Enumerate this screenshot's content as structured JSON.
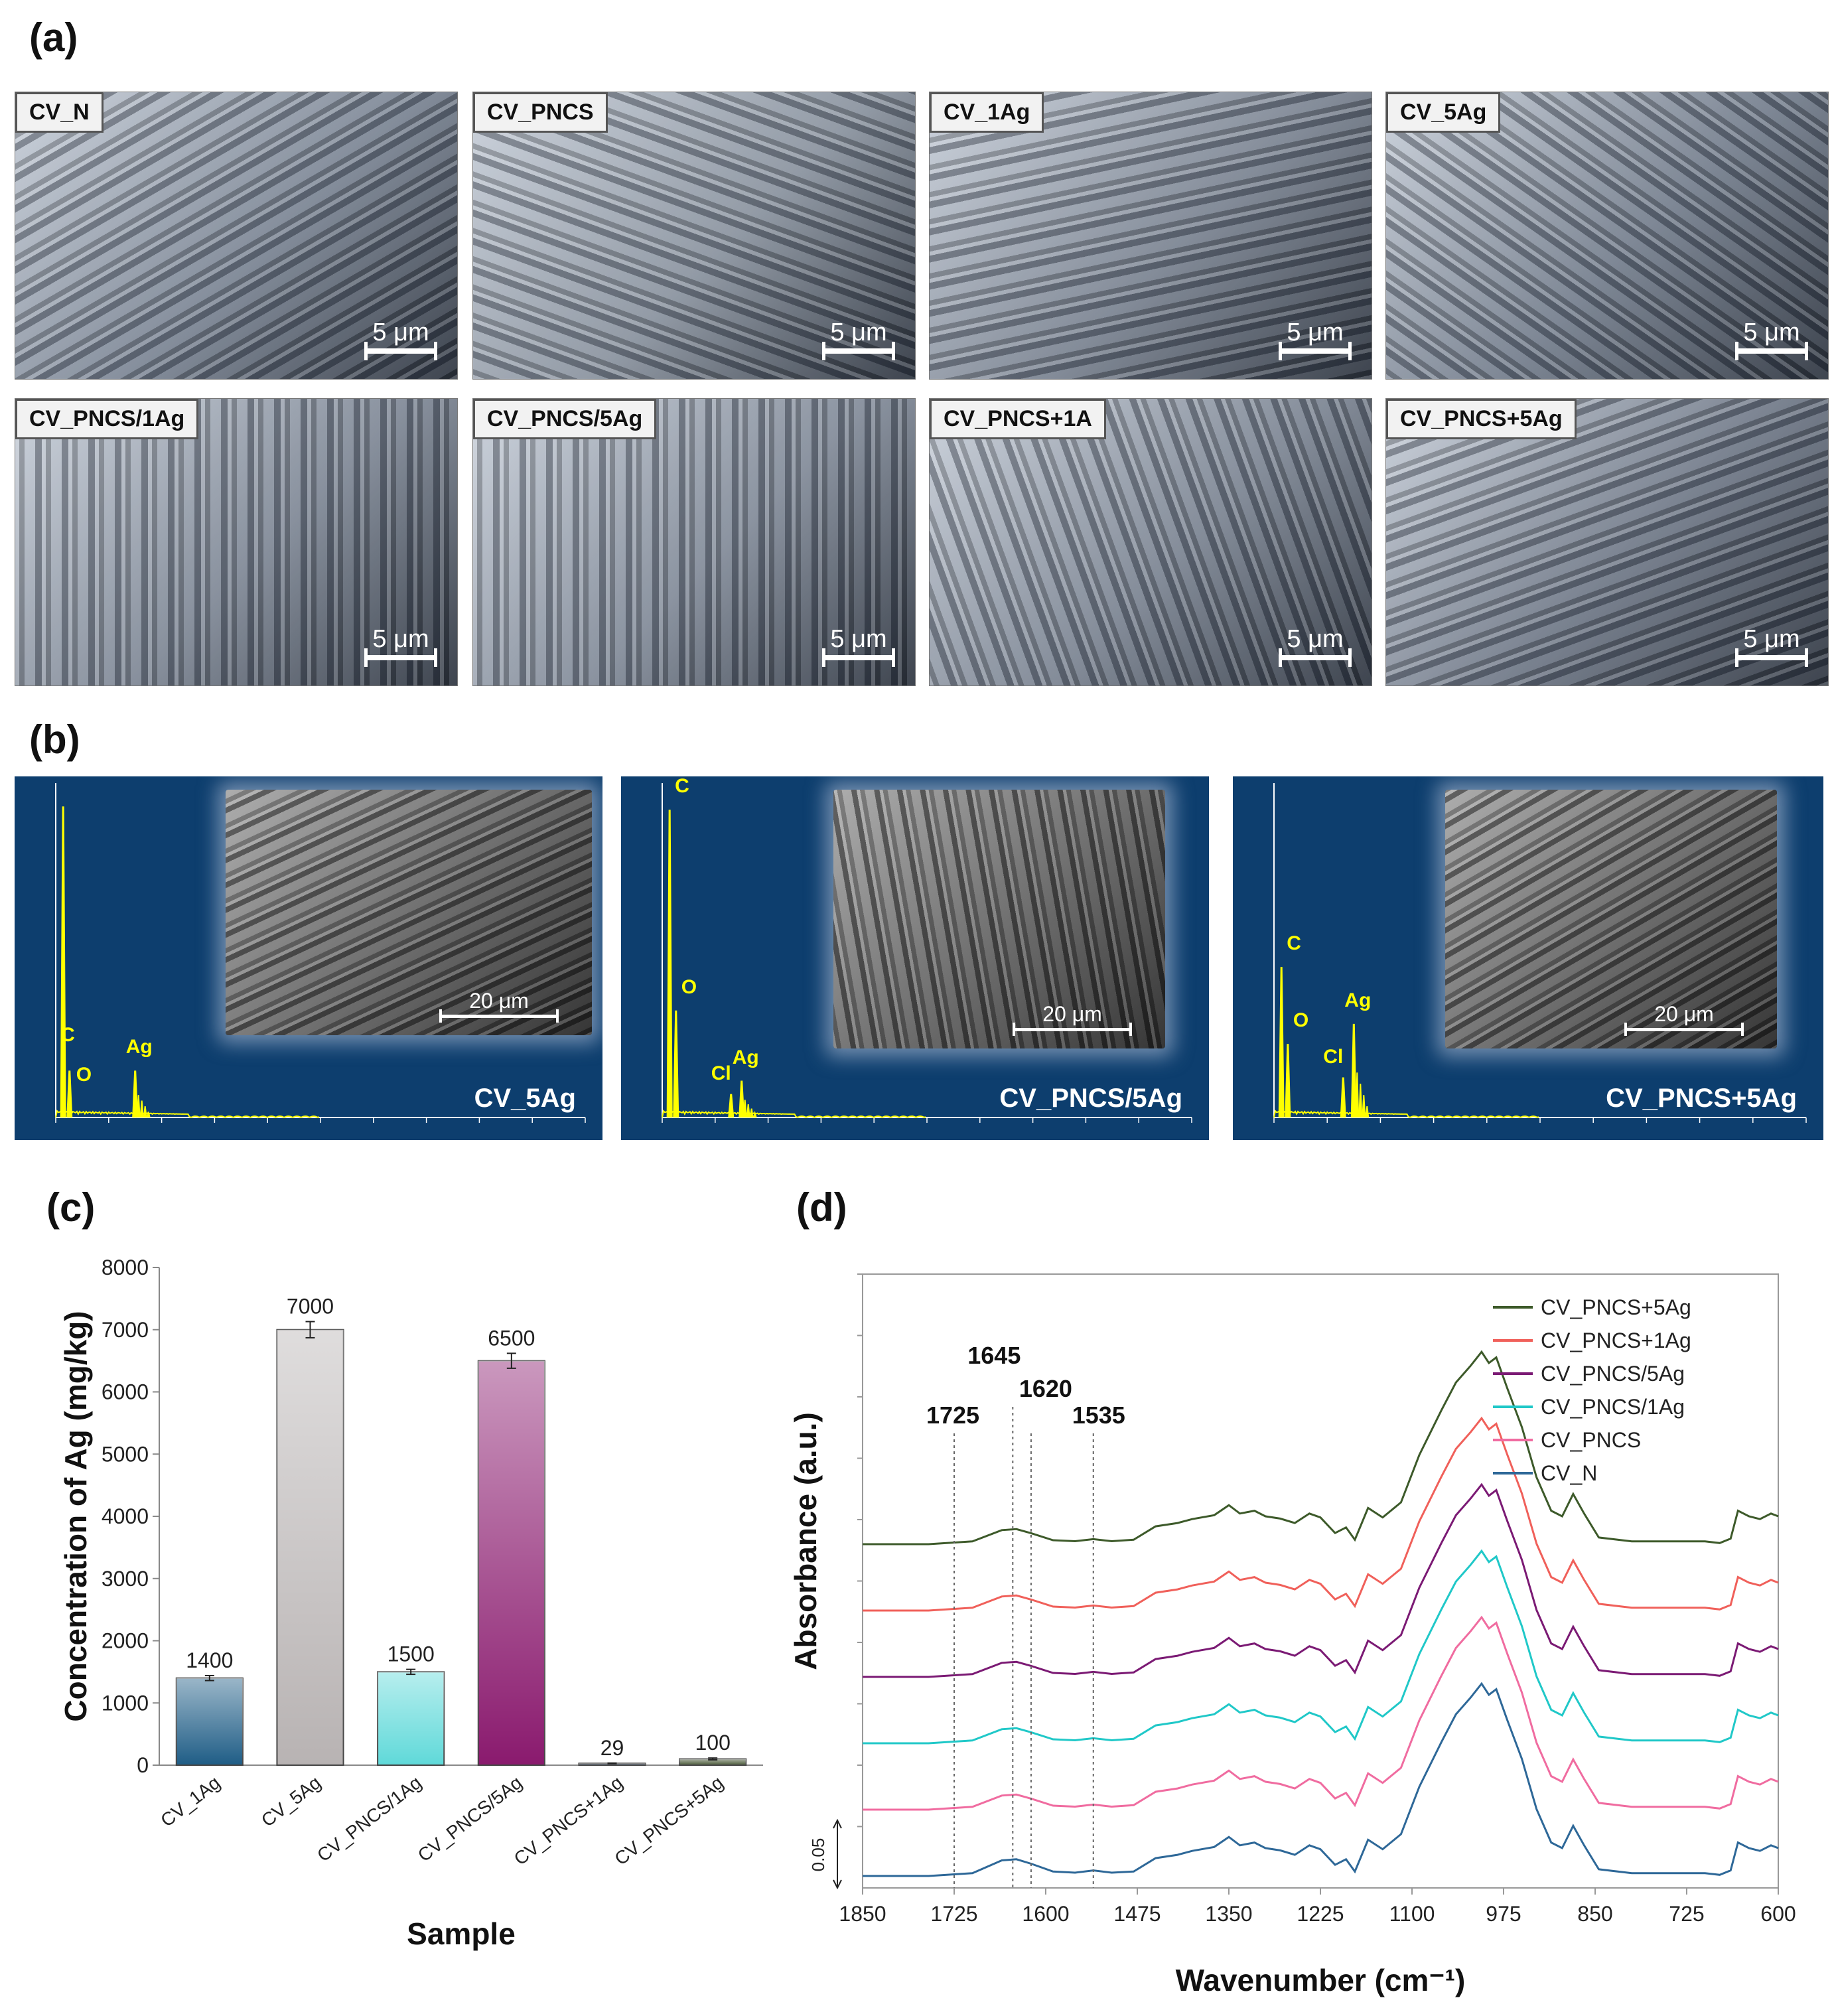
{
  "panel_a": {
    "label": "(a)",
    "images": [
      {
        "name": "CV_N",
        "scale": "5 μm",
        "tone": "#7b8594"
      },
      {
        "name": "CV_PNCS",
        "scale": "5 μm",
        "tone": "#8a939f"
      },
      {
        "name": "CV_1Ag",
        "scale": "5 μm",
        "tone": "#7a8391"
      },
      {
        "name": "CV_5Ag",
        "scale": "5 μm",
        "tone": "#737d8c"
      },
      {
        "name": "CV_PNCS/1Ag",
        "scale": "5 μm",
        "tone": "#7e8795"
      },
      {
        "name": "CV_PNCS/5Ag",
        "scale": "5 μm",
        "tone": "#818a98"
      },
      {
        "name": "CV_PNCS+1A",
        "scale": "5 μm",
        "tone": "#7b8492"
      },
      {
        "name": "CV_PNCS+5Ag",
        "scale": "5 μm",
        "tone": "#6f7887"
      }
    ]
  },
  "panel_b": {
    "label": "(b)",
    "spectra": [
      {
        "name": "CV_5Ag",
        "scale": "20 μm",
        "peaks": [
          "C",
          "O",
          "Ag"
        ]
      },
      {
        "name": "CV_PNCS/5Ag",
        "scale": "20 μm",
        "peaks": [
          "C",
          "O",
          "Cl",
          "Ag"
        ]
      },
      {
        "name": "CV_PNCS+5Ag",
        "scale": "20 μm",
        "peaks": [
          "C",
          "O",
          "Cl",
          "Ag"
        ]
      }
    ],
    "spectrum_color": "#ffff00",
    "background_color": "#0d3e6e"
  },
  "panel_c": {
    "label": "(c)"
  },
  "panel_d": {
    "label": "(d)"
  },
  "chart_data": [
    {
      "type": "bar",
      "title": "",
      "xlabel": "Sample",
      "ylabel": "Concentration of Ag (mg/kg)",
      "categories": [
        "CV_1Ag",
        "CV_5Ag",
        "CV_PNCS/1Ag",
        "CV_PNCS/5Ag",
        "CV_PNCS+1Ag",
        "CV_PNCS+5Ag"
      ],
      "values": [
        1400,
        7000,
        1500,
        6500,
        29,
        100
      ],
      "data_labels": [
        "1400",
        "7000",
        "1500",
        "6500",
        "29",
        "100"
      ],
      "errors": [
        40,
        130,
        40,
        120,
        5,
        15
      ],
      "colors": [
        "#1f5d86",
        "#b8b3b3",
        "#5fd9d9",
        "#8a1a6e",
        "#1f3556",
        "#4a5a38"
      ],
      "ylim": [
        0,
        8000
      ],
      "yticks": [
        0,
        1000,
        2000,
        3000,
        4000,
        5000,
        6000,
        7000,
        8000
      ]
    },
    {
      "type": "line",
      "title": "",
      "xlabel": "Wavenumber (cm⁻¹)",
      "ylabel": "Absorbance (a.u.)",
      "xlim": [
        1850,
        600
      ],
      "xticks": [
        1850,
        1725,
        1600,
        1475,
        1350,
        1225,
        1100,
        975,
        850,
        725,
        600
      ],
      "scale_bar": "0.05",
      "annotations": [
        {
          "label": "1725",
          "x": 1725
        },
        {
          "label": "1645",
          "x": 1645
        },
        {
          "label": "1620",
          "x": 1620
        },
        {
          "label": "1535",
          "x": 1535
        }
      ],
      "legend_position": "top-right",
      "series": [
        {
          "name": "CV_PNCS+5Ag",
          "color": "#3d5a2a",
          "offset": 5,
          "amp": 1.0
        },
        {
          "name": "CV_PNCS+1Ag",
          "color": "#f0605a",
          "offset": 4,
          "amp": 1.0
        },
        {
          "name": "CV_PNCS/5Ag",
          "color": "#7b1a74",
          "offset": 3,
          "amp": 1.0
        },
        {
          "name": "CV_PNCS/1Ag",
          "color": "#20c8c8",
          "offset": 2,
          "amp": 1.0
        },
        {
          "name": "CV_PNCS",
          "color": "#f06ca0",
          "offset": 1,
          "amp": 1.0
        },
        {
          "name": "CV_N",
          "color": "#2e6898",
          "offset": 0,
          "amp": 1.0
        }
      ]
    }
  ]
}
